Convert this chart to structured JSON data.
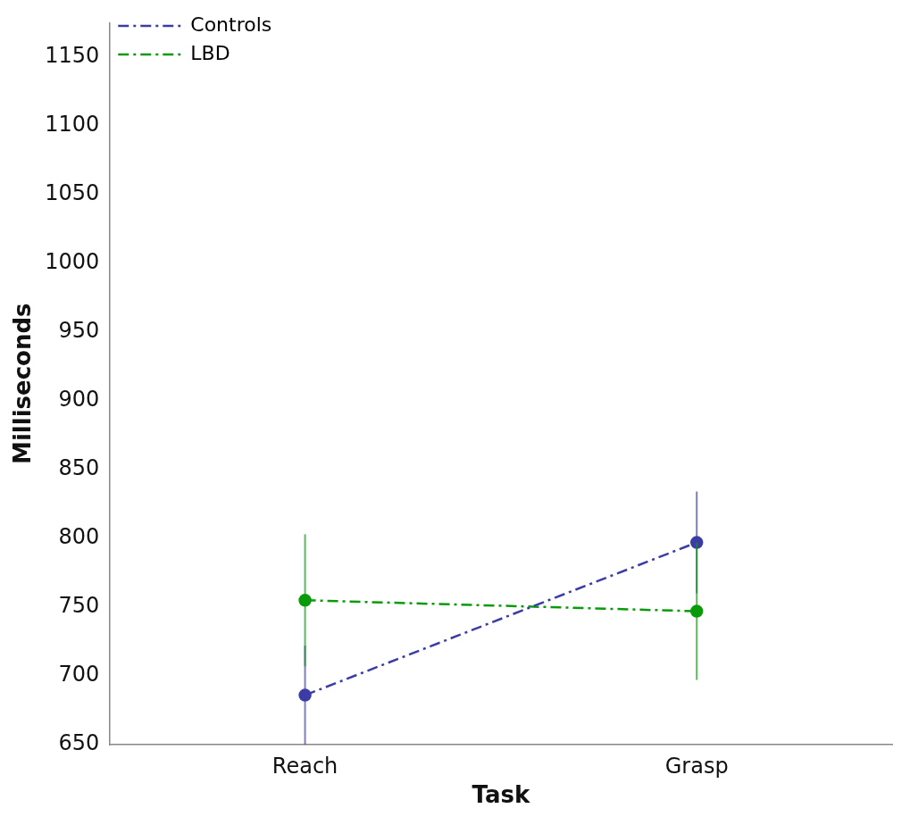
{
  "chart_data": {
    "type": "line",
    "xlabel": "Task",
    "ylabel": "Milliseconds",
    "categories": [
      "Reach",
      "Grasp"
    ],
    "series": [
      {
        "name": "Controls",
        "color": "#3c3ca6",
        "values": [
          686,
          797
        ],
        "errors": [
          36,
          37
        ]
      },
      {
        "name": "LBD",
        "color": "#0a9a0a",
        "values": [
          755,
          747
        ],
        "errors": [
          48,
          50
        ]
      }
    ],
    "ylim": [
      650,
      1175
    ],
    "yticks": [
      650,
      700,
      750,
      800,
      850,
      900,
      950,
      1000,
      1050,
      1100,
      1150
    ],
    "grid": false,
    "legend": "top left",
    "marker": "circle",
    "line_style": "dashdot"
  }
}
